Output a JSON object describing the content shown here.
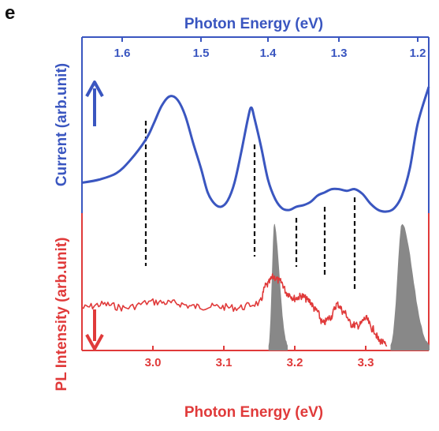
{
  "panel_label": "e",
  "chart_data": {
    "type": "line",
    "top_axis": {
      "label": "Photon Energy (eV)",
      "color": "#3a56c0",
      "ticks": [
        "1.6",
        "1.5",
        "1.4",
        "1.3",
        "1.2"
      ]
    },
    "bottom_axis": {
      "label": "Photon Energy (eV)",
      "color": "#e03a3a",
      "ticks": [
        "3.0",
        "3.1",
        "3.2",
        "3.3"
      ],
      "xlim": [
        2.9,
        3.39
      ]
    },
    "left_axis_top": {
      "label": "Current (arb.unit)",
      "color": "#3a56c0"
    },
    "left_axis_bottom": {
      "label": "PL Intensity (arb.unit)",
      "color": "#e03a3a"
    },
    "series": [
      {
        "name": "Current",
        "color": "#3a56c0",
        "points": [
          [
            1.67,
            0.18
          ],
          [
            1.64,
            0.2
          ],
          [
            1.61,
            0.24
          ],
          [
            1.59,
            0.32
          ],
          [
            1.57,
            0.45
          ],
          [
            1.56,
            0.55
          ],
          [
            1.55,
            0.66
          ],
          [
            1.54,
            0.72
          ],
          [
            1.53,
            0.7
          ],
          [
            1.52,
            0.6
          ],
          [
            1.51,
            0.43
          ],
          [
            1.5,
            0.27
          ],
          [
            1.49,
            0.12
          ],
          [
            1.48,
            0.05
          ],
          [
            1.47,
            0.03
          ],
          [
            1.46,
            0.07
          ],
          [
            1.45,
            0.18
          ],
          [
            1.44,
            0.37
          ],
          [
            1.43,
            0.58
          ],
          [
            1.425,
            0.65
          ],
          [
            1.42,
            0.58
          ],
          [
            1.41,
            0.4
          ],
          [
            1.4,
            0.2
          ],
          [
            1.39,
            0.08
          ],
          [
            1.38,
            0.02
          ],
          [
            1.37,
            0.01
          ],
          [
            1.36,
            0.03
          ],
          [
            1.35,
            0.04
          ],
          [
            1.34,
            0.06
          ],
          [
            1.33,
            0.1
          ],
          [
            1.32,
            0.12
          ],
          [
            1.31,
            0.14
          ],
          [
            1.3,
            0.14
          ],
          [
            1.29,
            0.13
          ],
          [
            1.28,
            0.14
          ],
          [
            1.27,
            0.11
          ],
          [
            1.26,
            0.05
          ],
          [
            1.25,
            0.01
          ],
          [
            1.24,
            0.0
          ],
          [
            1.23,
            0.02
          ],
          [
            1.22,
            0.1
          ],
          [
            1.21,
            0.27
          ],
          [
            1.2,
            0.55
          ],
          [
            1.19,
            0.78
          ]
        ]
      },
      {
        "name": "PL Intensity",
        "color": "#e03a3a",
        "points": [
          [
            2.9,
            0.36
          ],
          [
            2.93,
            0.39
          ],
          [
            2.96,
            0.36
          ],
          [
            3.0,
            0.41
          ],
          [
            3.03,
            0.4
          ],
          [
            3.06,
            0.37
          ],
          [
            3.09,
            0.37
          ],
          [
            3.12,
            0.36
          ],
          [
            3.15,
            0.4
          ],
          [
            3.16,
            0.55
          ],
          [
            3.17,
            0.62
          ],
          [
            3.18,
            0.58
          ],
          [
            3.19,
            0.48
          ],
          [
            3.2,
            0.44
          ],
          [
            3.21,
            0.46
          ],
          [
            3.22,
            0.42
          ],
          [
            3.23,
            0.34
          ],
          [
            3.24,
            0.23
          ],
          [
            3.25,
            0.28
          ],
          [
            3.26,
            0.39
          ],
          [
            3.27,
            0.32
          ],
          [
            3.28,
            0.22
          ],
          [
            3.29,
            0.21
          ],
          [
            3.3,
            0.27
          ],
          [
            3.31,
            0.18
          ],
          [
            3.32,
            0.08
          ],
          [
            3.33,
            0.04
          ]
        ]
      }
    ],
    "filled_peaks": [
      {
        "name": "laser-peak-left",
        "color": "#888888",
        "xmin": 3.163,
        "xmax": 3.19,
        "peak_x": 3.171,
        "height": 1.0
      },
      {
        "name": "laser-peak-right",
        "color": "#888888",
        "xmin": 3.335,
        "xmax": 3.39,
        "peak_x": 3.351,
        "height": 1.0
      }
    ],
    "dashed_markers_top_energy": [
      1.57,
      1.42,
      1.36,
      1.32,
      1.28
    ]
  }
}
